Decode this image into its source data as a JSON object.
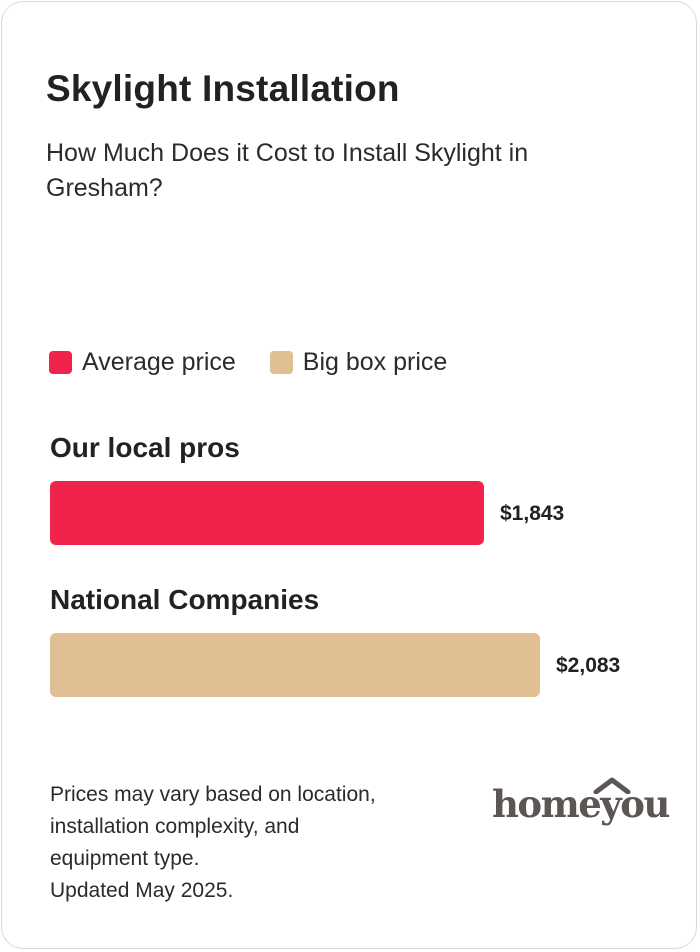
{
  "card": {
    "title": "Skylight Installation",
    "subtitle": "How Much Does it Cost to Install Skylight in Gresham?"
  },
  "colors": {
    "average": "#f0234b",
    "bigbox": "#dfbf93"
  },
  "chart_data": {
    "type": "bar",
    "orientation": "horizontal",
    "categories": [
      "Our local pros",
      "National Companies"
    ],
    "values": [
      1843,
      2083
    ],
    "value_labels": [
      "$1,843",
      "$2,083"
    ],
    "legend": [
      {
        "name": "Average price",
        "color": "#f0234b"
      },
      {
        "name": "Big box price",
        "color": "#dfbf93"
      }
    ],
    "bar_colors": [
      "#f0234b",
      "#dfbf93"
    ],
    "legend_position": "top-left",
    "grid": false
  },
  "footnote": {
    "lines": [
      "Prices may vary based on location,",
      "installation complexity, and",
      "equipment type.",
      "Updated May 2025."
    ]
  },
  "logo": {
    "text": "homeyou"
  }
}
